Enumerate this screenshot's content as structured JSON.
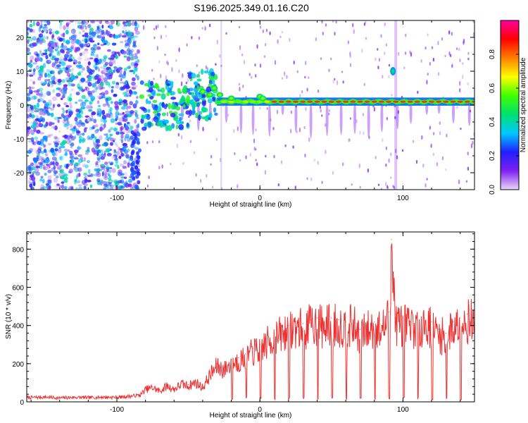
{
  "figure": {
    "title": "S196.2025.349.01.16.C20"
  },
  "chart_data": [
    {
      "type": "heatmap",
      "name": "spectrogram",
      "xlabel": "Height of straight line (km)",
      "ylabel": "Frequency (Hz)",
      "xlim": [
        -163,
        150
      ],
      "ylim": [
        -25,
        25
      ],
      "x_ticks": [
        -100,
        0,
        100
      ],
      "x_tick_labels": [
        "-100",
        "0",
        "100"
      ],
      "y_ticks": [
        -20,
        -10,
        0,
        10,
        20
      ],
      "y_tick_labels": [
        "-20",
        "-10",
        "0",
        "10",
        "20"
      ],
      "colorbar": {
        "label": "Normalized spectral amplitude",
        "range": [
          0.0,
          1.0
        ],
        "ticks": [
          0.0,
          0.2,
          0.4,
          0.6,
          0.8
        ],
        "tick_labels": [
          "0.0",
          "0.2",
          "0.4",
          "0.6",
          "0.8"
        ],
        "colormap": [
          "#e8d8f8",
          "#8020f0",
          "#2020ff",
          "#00c8ff",
          "#00e070",
          "#40ff00",
          "#ffff00",
          "#ff8000",
          "#ff0000",
          "#ff00a0"
        ]
      },
      "noise_region_x": [
        -163,
        -85
      ],
      "ridge_start_x": -83,
      "ridge_frequency_hz": 1,
      "ridge_peak_amplitude": 0.85,
      "spike_x": 95,
      "spike_frequency_hz": 10
    },
    {
      "type": "line",
      "name": "snr",
      "xlabel": "Height of straight line (km)",
      "ylabel": "SNR (10 * v/v)",
      "xlim": [
        -163,
        150
      ],
      "ylim": [
        0,
        890
      ],
      "x_ticks": [
        -100,
        0,
        100
      ],
      "x_tick_labels": [
        "-100",
        "0",
        "100"
      ],
      "y_ticks": [
        0,
        200,
        400,
        600,
        800
      ],
      "y_tick_labels": [
        "0",
        "200",
        "400",
        "600",
        "800"
      ],
      "series": [
        {
          "name": "SNR",
          "color": "#ee3030",
          "x": [
            -163,
            -150,
            -140,
            -130,
            -120,
            -110,
            -100,
            -90,
            -84,
            -80,
            -75,
            -70,
            -65,
            -60,
            -55,
            -50,
            -45,
            -40,
            -35,
            -30,
            -25,
            -20,
            -15,
            -10,
            -5,
            0,
            5,
            10,
            15,
            20,
            25,
            30,
            35,
            40,
            45,
            50,
            55,
            60,
            65,
            70,
            75,
            80,
            85,
            90,
            92,
            95,
            100,
            105,
            110,
            115,
            120,
            125,
            130,
            135,
            140,
            145,
            150
          ],
          "y": [
            22,
            25,
            20,
            24,
            22,
            25,
            23,
            30,
            35,
            70,
            80,
            60,
            90,
            70,
            100,
            90,
            110,
            80,
            150,
            200,
            180,
            220,
            230,
            250,
            280,
            300,
            330,
            360,
            380,
            400,
            420,
            410,
            430,
            440,
            420,
            440,
            430,
            420,
            430,
            380,
            400,
            420,
            400,
            470,
            850,
            440,
            440,
            420,
            430,
            440,
            420,
            380,
            360,
            420,
            440,
            460,
            450
          ]
        }
      ]
    }
  ]
}
